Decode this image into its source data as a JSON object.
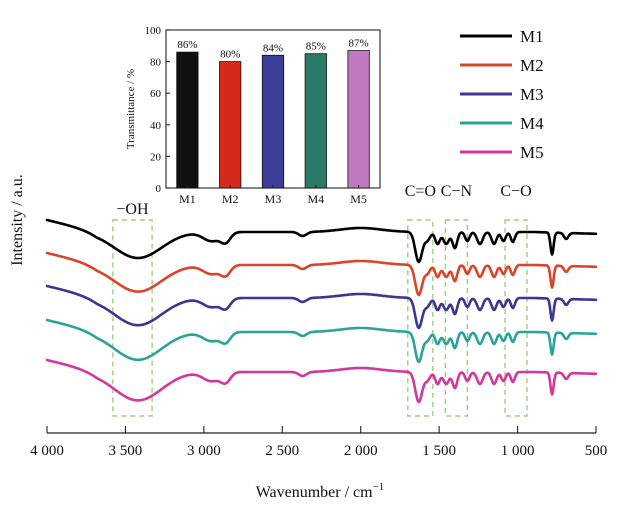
{
  "chart_data": [
    {
      "type": "line",
      "title": "",
      "xlabel": "Wavenumber / cm",
      "xlabel_sup": "−1",
      "ylabel": "Intensity / a.u.",
      "xlim": [
        4000,
        500
      ],
      "x_reversed": true,
      "y_values_shown": false,
      "xticks": [
        4000,
        3500,
        3000,
        2500,
        2000,
        1500,
        1000,
        500
      ],
      "xtick_labels": [
        "4 000",
        "3 500",
        "3 000",
        "2 500",
        "2 000",
        "1 500",
        "1 000",
        "500"
      ],
      "legend_position": "top-right",
      "series_style": [
        {
          "name": "M1",
          "color": "#000000"
        },
        {
          "name": "M2",
          "color": "#d9442b"
        },
        {
          "name": "M3",
          "color": "#3d3592"
        },
        {
          "name": "M4",
          "color": "#2aa39a"
        },
        {
          "name": "M5",
          "color": "#d4379a"
        }
      ],
      "annotations": [
        {
          "text": "−OH",
          "x_range": [
            3580,
            3330
          ]
        },
        {
          "text": "C=O",
          "x_range": [
            1700,
            1540
          ]
        },
        {
          "text": "C−N",
          "x_range": [
            1460,
            1320
          ]
        },
        {
          "text": "C−O",
          "x_range": [
            1080,
            940
          ]
        }
      ]
    },
    {
      "type": "bar",
      "title": "",
      "categories": [
        "M1",
        "M2",
        "M3",
        "M4",
        "M5"
      ],
      "values": [
        86,
        80,
        84,
        85,
        87
      ],
      "data_labels": [
        "86%",
        "80%",
        "84%",
        "85%",
        "87%"
      ],
      "colors": [
        "#111111",
        "#d42a1c",
        "#3b3f9a",
        "#2a7a68",
        "#c078c0"
      ],
      "ylabel": "Transmittance / %",
      "ylim": [
        0,
        100
      ],
      "yticks": [
        0,
        20,
        40,
        60,
        80,
        100
      ],
      "xlabel": ""
    }
  ]
}
